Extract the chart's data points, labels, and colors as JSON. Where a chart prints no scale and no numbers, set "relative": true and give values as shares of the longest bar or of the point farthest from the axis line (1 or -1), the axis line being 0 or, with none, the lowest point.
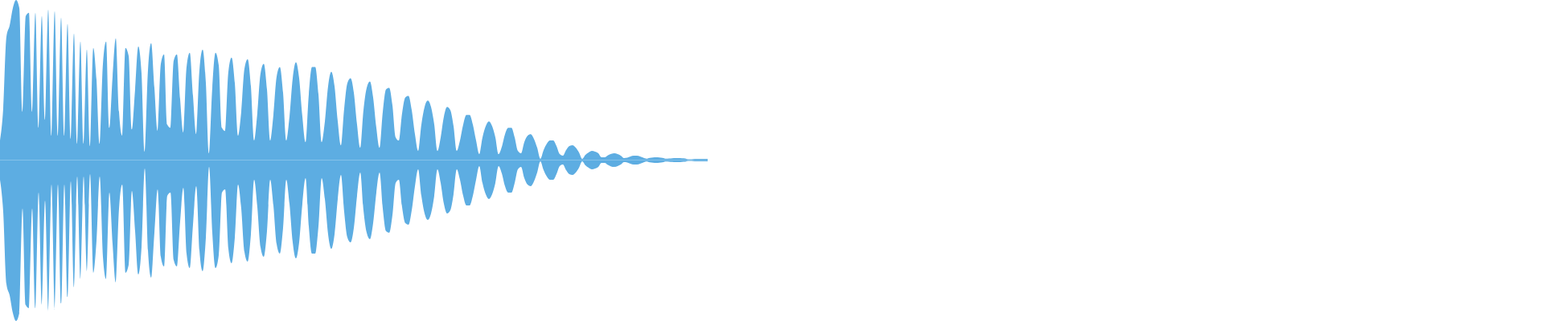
{
  "chart_data": [
    {
      "type": "area",
      "relative": true,
      "tick_labels": false,
      "color": "#5dade2",
      "categories": [
        null,
        null,
        null,
        null,
        null,
        null,
        null,
        null,
        null,
        null,
        null,
        null,
        null,
        null,
        null,
        null,
        null,
        null,
        null,
        null,
        null,
        null,
        null,
        null,
        null,
        null,
        null,
        null,
        null,
        null,
        null,
        null,
        null,
        null,
        null,
        null,
        null,
        null,
        null,
        null,
        null,
        null,
        null,
        null,
        null,
        null,
        null,
        null,
        null,
        null,
        null,
        null,
        null,
        null,
        null,
        null,
        null,
        null,
        null,
        null,
        null,
        null,
        null,
        null,
        null,
        null,
        null,
        null,
        null,
        null,
        null,
        null,
        null,
        null,
        null,
        null,
        null,
        null,
        null,
        null,
        null,
        null,
        null,
        null,
        null,
        null,
        null,
        null,
        null,
        null,
        null,
        null,
        null,
        null,
        null,
        null,
        null,
        null,
        null,
        null,
        null,
        null,
        null,
        null,
        null,
        null,
        null,
        null,
        null,
        null,
        null,
        null,
        null,
        null,
        null,
        null,
        null,
        null,
        null,
        null,
        null,
        null,
        null,
        null,
        null,
        null,
        null,
        null,
        null,
        null,
        null,
        null,
        null,
        null,
        null,
        null,
        null,
        null,
        null,
        null,
        null,
        null,
        null,
        null,
        null,
        null,
        null,
        null,
        null,
        null,
        null,
        null,
        null,
        null,
        null,
        null,
        null,
        null,
        null,
        null,
        null,
        null,
        null,
        null,
        null,
        null,
        null,
        null,
        null,
        null,
        null,
        null,
        null,
        null,
        null,
        null,
        null,
        null,
        null,
        null,
        null,
        null,
        null,
        null,
        null,
        null,
        null,
        null,
        null,
        null,
        null,
        null,
        null,
        null,
        null,
        null,
        null,
        null,
        null,
        null,
        null,
        null,
        null,
        null,
        null,
        null,
        null,
        null,
        null,
        null,
        null,
        null,
        null,
        null,
        null,
        null,
        null,
        null,
        null,
        null,
        null
      ],
      "values": [
        0.12,
        0.32,
        0.77,
        0.84,
        0.95,
        1,
        0.95,
        0.3,
        0.9,
        0.92,
        0.3,
        0.92,
        0.2,
        0.9,
        0.25,
        0.94,
        0.15,
        0.93,
        0.15,
        0.89,
        0.15,
        0.85,
        0.13,
        0.79,
        0.1,
        0.74,
        0.1,
        0.69,
        0.085,
        0.7,
        0.5,
        0.1,
        0.6,
        0.74,
        0.2,
        0.52,
        0.76,
        0.3,
        0.15,
        0.7,
        0.65,
        0.19,
        0.44,
        0.71,
        0.54,
        0.05,
        0.56,
        0.73,
        0.45,
        0.18,
        0.6,
        0.66,
        0.22,
        0.2,
        0.62,
        0.66,
        0.38,
        0.17,
        0.58,
        0.67,
        0.4,
        0.16,
        0.56,
        0.69,
        0.48,
        0.04,
        0.45,
        0.67,
        0.59,
        0.2,
        0.18,
        0.55,
        0.64,
        0.48,
        0.15,
        0.3,
        0.57,
        0.63,
        0.46,
        0.12,
        0.29,
        0.54,
        0.6,
        0.44,
        0.12,
        0.28,
        0.52,
        0.58,
        0.42,
        0.12,
        0.27,
        0.51,
        0.61,
        0.51,
        0.27,
        0.11,
        0.41,
        0.58,
        0.58,
        0.41,
        0.11,
        0.24,
        0.46,
        0.55,
        0.46,
        0.24,
        0.09,
        0.32,
        0.48,
        0.51,
        0.42,
        0.22,
        0.075,
        0.31,
        0.45,
        0.49,
        0.39,
        0.2,
        0.075,
        0.3,
        0.44,
        0.45,
        0.34,
        0.14,
        0.12,
        0.29,
        0.39,
        0.4,
        0.31,
        0.16,
        0.055,
        0.22,
        0.33,
        0.37,
        0.33,
        0.22,
        0.055,
        0.14,
        0.27,
        0.33,
        0.31,
        0.21,
        0.055,
        0.12,
        0.22,
        0.28,
        0.28,
        0.22,
        0.12,
        0.035,
        0.14,
        0.21,
        0.24,
        0.21,
        0.14,
        0.035,
        0.08,
        0.16,
        0.2,
        0.2,
        0.14,
        0.055,
        0.04,
        0.11,
        0.15,
        0.16,
        0.13,
        0.075,
        0.005,
        0.06,
        0.1,
        0.12,
        0.12,
        0.085,
        0.035,
        0.025,
        0.06,
        0.085,
        0.09,
        0.075,
        0.045,
        0.005,
        0.03,
        0.045,
        0.055,
        0.05,
        0.04,
        0.015,
        0.015,
        0.028,
        0.037,
        0.04,
        0.035,
        0.025,
        0.01,
        0.012,
        0.02,
        0.025,
        0.025,
        0.02,
        0.012,
        0.006,
        0.011,
        0.014,
        0.015,
        0.014,
        0.011,
        0.006,
        0.007,
        0.009,
        0.01,
        0.01,
        0.009,
        0.008,
        0,
        0,
        0.005,
        0.005,
        0.005,
        0.005,
        0.005
      ]
    },
    {
      "type": "area",
      "relative": true,
      "tick_labels": false,
      "color": "#5dade2",
      "categories": [
        null,
        null,
        null,
        null,
        null,
        null,
        null,
        null,
        null,
        null,
        null,
        null,
        null,
        null,
        null,
        null,
        null,
        null,
        null,
        null,
        null,
        null,
        null,
        null,
        null,
        null,
        null,
        null,
        null,
        null,
        null,
        null,
        null,
        null,
        null,
        null,
        null,
        null,
        null,
        null,
        null,
        null,
        null,
        null,
        null,
        null,
        null,
        null,
        null,
        null,
        null,
        null,
        null,
        null,
        null,
        null,
        null,
        null,
        null,
        null,
        null,
        null,
        null,
        null,
        null,
        null,
        null,
        null,
        null,
        null,
        null,
        null,
        null,
        null,
        null,
        null,
        null,
        null,
        null,
        null,
        null,
        null,
        null,
        null,
        null,
        null,
        null,
        null,
        null,
        null,
        null,
        null,
        null,
        null,
        null,
        null,
        null,
        null,
        null,
        null,
        null,
        null,
        null,
        null,
        null,
        null,
        null,
        null,
        null,
        null,
        null,
        null,
        null,
        null,
        null,
        null,
        null,
        null,
        null,
        null,
        null,
        null,
        null,
        null,
        null,
        null,
        null,
        null,
        null,
        null,
        null,
        null,
        null,
        null,
        null,
        null,
        null,
        null,
        null,
        null,
        null,
        null,
        null,
        null,
        null,
        null,
        null,
        null,
        null,
        null,
        null,
        null,
        null,
        null,
        null,
        null,
        null,
        null,
        null,
        null,
        null,
        null,
        null,
        null,
        null,
        null,
        null,
        null,
        null,
        null,
        null,
        null,
        null,
        null,
        null,
        null,
        null,
        null,
        null,
        null,
        null,
        null,
        null,
        null,
        null,
        null,
        null,
        null,
        null,
        null,
        null,
        null,
        null,
        null,
        null,
        null,
        null,
        null,
        null,
        null,
        null,
        null,
        null,
        null,
        null,
        null,
        null,
        null,
        null,
        null,
        null,
        null,
        null,
        null,
        null,
        null,
        null,
        null,
        null,
        null,
        null
      ],
      "values": [
        -0.12,
        -0.32,
        -0.77,
        -0.84,
        -0.95,
        -1,
        -0.95,
        -0.3,
        -0.9,
        -0.92,
        -0.3,
        -0.92,
        -0.2,
        -0.9,
        -0.25,
        -0.94,
        -0.15,
        -0.93,
        -0.15,
        -0.89,
        -0.15,
        -0.85,
        -0.13,
        -0.79,
        -0.1,
        -0.74,
        -0.1,
        -0.69,
        -0.085,
        -0.7,
        -0.5,
        -0.1,
        -0.6,
        -0.74,
        -0.2,
        -0.52,
        -0.76,
        -0.3,
        -0.15,
        -0.7,
        -0.65,
        -0.19,
        -0.44,
        -0.71,
        -0.54,
        -0.05,
        -0.56,
        -0.73,
        -0.45,
        -0.18,
        -0.6,
        -0.66,
        -0.22,
        -0.2,
        -0.62,
        -0.66,
        -0.38,
        -0.17,
        -0.58,
        -0.67,
        -0.4,
        -0.16,
        -0.56,
        -0.69,
        -0.48,
        -0.04,
        -0.45,
        -0.67,
        -0.59,
        -0.2,
        -0.18,
        -0.55,
        -0.64,
        -0.48,
        -0.15,
        -0.3,
        -0.57,
        -0.63,
        -0.46,
        -0.12,
        -0.29,
        -0.54,
        -0.6,
        -0.44,
        -0.12,
        -0.28,
        -0.52,
        -0.58,
        -0.42,
        -0.12,
        -0.27,
        -0.51,
        -0.61,
        -0.51,
        -0.27,
        -0.11,
        -0.41,
        -0.58,
        -0.58,
        -0.41,
        -0.11,
        -0.24,
        -0.46,
        -0.55,
        -0.46,
        -0.24,
        -0.09,
        -0.32,
        -0.48,
        -0.51,
        -0.42,
        -0.22,
        -0.075,
        -0.31,
        -0.45,
        -0.49,
        -0.39,
        -0.2,
        -0.075,
        -0.3,
        -0.44,
        -0.45,
        -0.34,
        -0.14,
        -0.12,
        -0.29,
        -0.39,
        -0.4,
        -0.31,
        -0.16,
        -0.055,
        -0.22,
        -0.33,
        -0.37,
        -0.33,
        -0.22,
        -0.055,
        -0.14,
        -0.27,
        -0.33,
        -0.31,
        -0.21,
        -0.055,
        -0.12,
        -0.22,
        -0.28,
        -0.28,
        -0.22,
        -0.12,
        -0.035,
        -0.14,
        -0.21,
        -0.24,
        -0.21,
        -0.14,
        -0.035,
        -0.08,
        -0.16,
        -0.2,
        -0.2,
        -0.14,
        -0.055,
        -0.04,
        -0.11,
        -0.15,
        -0.16,
        -0.13,
        -0.075,
        -0.005,
        -0.06,
        -0.1,
        -0.12,
        -0.12,
        -0.085,
        -0.035,
        -0.025,
        -0.06,
        -0.085,
        -0.09,
        -0.075,
        -0.045,
        -0.005,
        -0.03,
        -0.045,
        -0.055,
        -0.05,
        -0.04,
        -0.015,
        -0.015,
        -0.028,
        -0.037,
        -0.04,
        -0.035,
        -0.025,
        -0.01,
        -0.012,
        -0.02,
        -0.025,
        -0.025,
        -0.02,
        -0.012,
        -0.006,
        -0.011,
        -0.014,
        -0.015,
        -0.014,
        -0.011,
        -0.006,
        -0.007,
        -0.009,
        -0.01,
        -0.01,
        -0.009,
        -0.008,
        0,
        0,
        -0.005,
        -0.005,
        -0.005,
        -0.005,
        -0.005
      ]
    }
  ]
}
